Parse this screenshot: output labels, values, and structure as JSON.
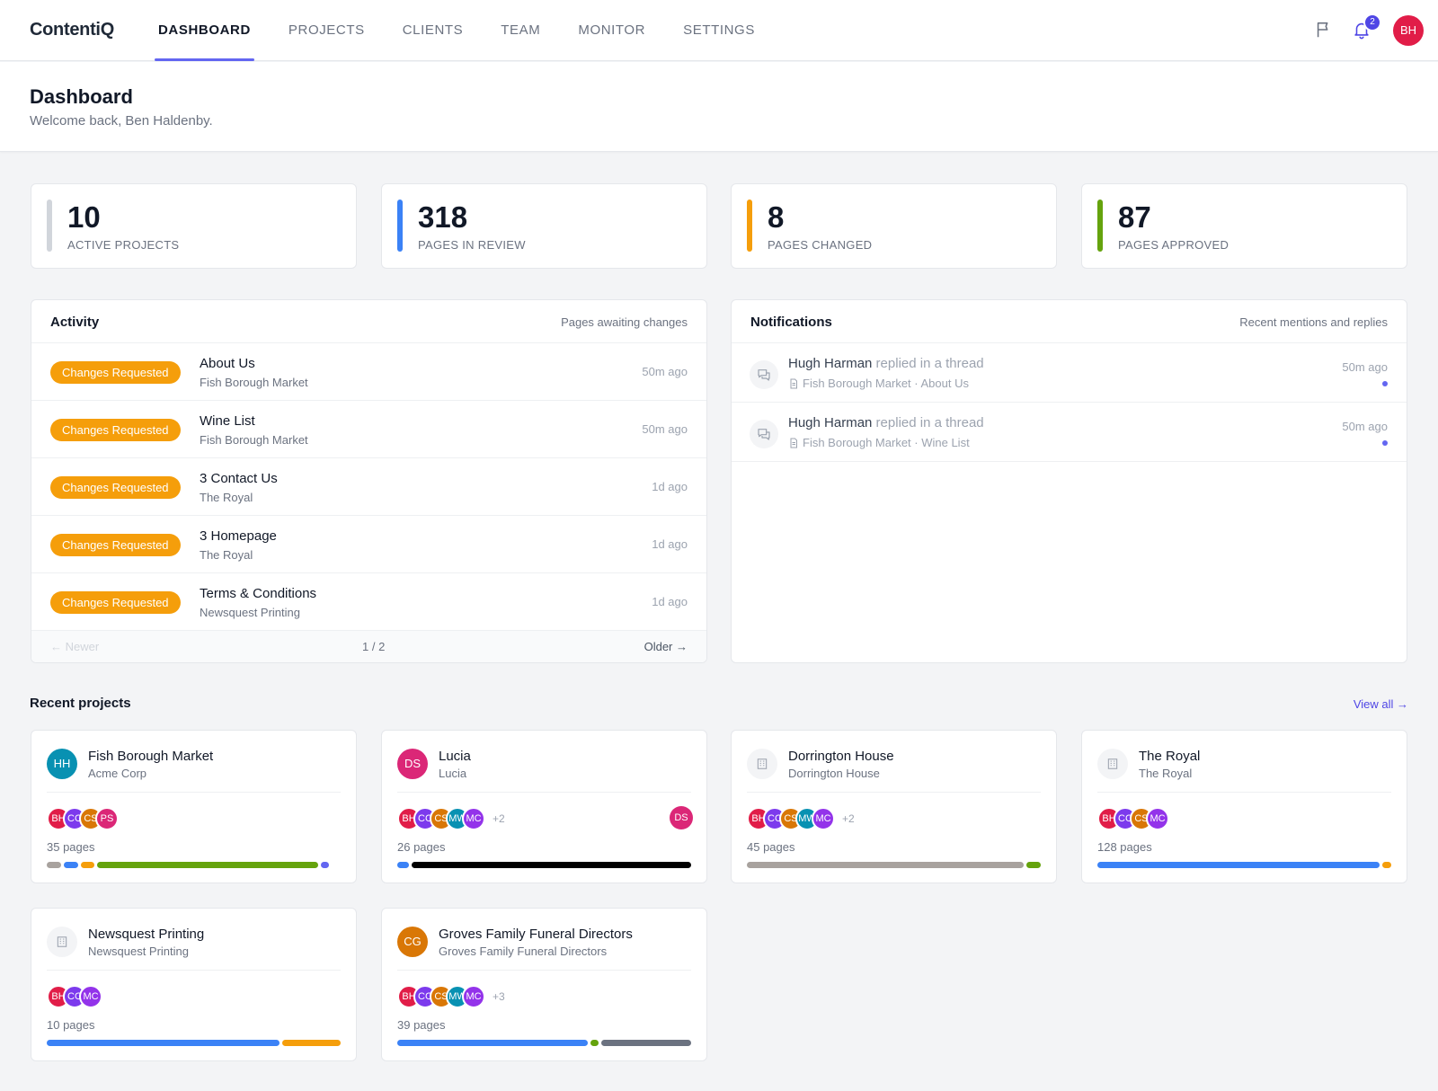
{
  "app": {
    "logo": "ContentiQ"
  },
  "nav": {
    "tabs": [
      {
        "label": "DASHBOARD",
        "active": true
      },
      {
        "label": "PROJECTS"
      },
      {
        "label": "CLIENTS"
      },
      {
        "label": "TEAM"
      },
      {
        "label": "MONITOR"
      },
      {
        "label": "SETTINGS"
      }
    ],
    "notifications_count": "2",
    "user_initials": "BH",
    "icons": [
      "flag-icon",
      "bell-icon"
    ]
  },
  "header": {
    "title": "Dashboard",
    "subtitle": "Welcome back, Ben Haldenby."
  },
  "stats": [
    {
      "value": "10",
      "label": "ACTIVE PROJECTS",
      "color": "#d1d5db"
    },
    {
      "value": "318",
      "label": "PAGES IN REVIEW",
      "color": "#3b82f6"
    },
    {
      "value": "8",
      "label": "PAGES CHANGED",
      "color": "#f59e0b"
    },
    {
      "value": "87",
      "label": "PAGES APPROVED",
      "color": "#65a30d"
    }
  ],
  "activity": {
    "title": "Activity",
    "hint": "Pages awaiting changes",
    "rows": [
      {
        "status": "Changes Requested",
        "page": "About Us",
        "project": "Fish Borough Market",
        "time": "50m ago"
      },
      {
        "status": "Changes Requested",
        "page": "Wine List",
        "project": "Fish Borough Market",
        "time": "50m ago"
      },
      {
        "status": "Changes Requested",
        "page": "3 Contact Us",
        "project": "The Royal",
        "time": "1d ago"
      },
      {
        "status": "Changes Requested",
        "page": "3 Homepage",
        "project": "The Royal",
        "time": "1d ago"
      },
      {
        "status": "Changes Requested",
        "page": "Terms & Conditions",
        "project": "Newsquest Printing",
        "time": "1d ago"
      }
    ],
    "pager": {
      "newer": "← Newer",
      "page": "1 / 2",
      "older": "Older →"
    }
  },
  "notifications": {
    "title": "Notifications",
    "hint": "Recent mentions and replies",
    "rows": [
      {
        "author": "Hugh Harman",
        "action": " replied in a thread",
        "context": "Fish Borough Market · About Us",
        "time": "50m ago",
        "unread": true
      },
      {
        "author": "Hugh Harman",
        "action": " replied in a thread",
        "context": "Fish Borough Market · Wine List",
        "time": "50m ago",
        "unread": true
      }
    ]
  },
  "recent_projects": {
    "title": "Recent projects",
    "view_all": "View all →",
    "projects": [
      {
        "name": "Fish Borough Market",
        "client": "Acme Corp",
        "avatar": "HH",
        "avatar_color": "#0891b2",
        "members": [
          [
            "BH",
            "#e11d48"
          ],
          [
            "CC",
            "#7c3aed"
          ],
          [
            "CS",
            "#d97706"
          ],
          [
            "PS",
            "#db2777"
          ]
        ],
        "extra": "",
        "owner": "",
        "pages": "35 pages",
        "progress": [
          [
            "#a8a29e",
            0.05
          ],
          [
            "#3b82f6",
            0.05
          ],
          [
            "#f59e0b",
            0.05
          ],
          [
            "#65a30d",
            0.78
          ],
          [
            "#6366f1",
            0.03
          ]
        ]
      },
      {
        "name": "Lucia",
        "client": "Lucia",
        "avatar": "DS",
        "avatar_color": "#db2777",
        "members": [
          [
            "BH",
            "#e11d48"
          ],
          [
            "CC",
            "#7c3aed"
          ],
          [
            "CS",
            "#d97706"
          ],
          [
            "MW",
            "#0891b2"
          ],
          [
            "MC",
            "#9333ea"
          ]
        ],
        "extra": "+2",
        "owner": "DS",
        "pages": "26 pages",
        "progress": [
          [
            "#3b82f6",
            0.04
          ],
          [
            "#000000",
            0.96
          ]
        ]
      },
      {
        "name": "Dorrington House",
        "client": "Dorrington House",
        "avatar": "",
        "avatar_color": "",
        "members": [
          [
            "BH",
            "#e11d48"
          ],
          [
            "CC",
            "#7c3aed"
          ],
          [
            "CS",
            "#d97706"
          ],
          [
            "MW",
            "#0891b2"
          ],
          [
            "MC",
            "#9333ea"
          ]
        ],
        "extra": "+2",
        "owner": "",
        "pages": "45 pages",
        "progress": [
          [
            "#a8a29e",
            0.95
          ],
          [
            "#65a30d",
            0.05
          ]
        ]
      },
      {
        "name": "The Royal",
        "client": "The Royal",
        "avatar": "",
        "avatar_color": "",
        "members": [
          [
            "BH",
            "#e11d48"
          ],
          [
            "CC",
            "#7c3aed"
          ],
          [
            "CS",
            "#d97706"
          ],
          [
            "MC",
            "#9333ea"
          ]
        ],
        "extra": "",
        "owner": "",
        "pages": "128 pages",
        "progress": [
          [
            "#3b82f6",
            0.97
          ],
          [
            "#f59e0b",
            0.03
          ]
        ]
      },
      {
        "name": "Newsquest Printing",
        "client": "Newsquest Printing",
        "avatar": "",
        "avatar_color": "",
        "members": [
          [
            "BH",
            "#e11d48"
          ],
          [
            "CC",
            "#7c3aed"
          ],
          [
            "MC",
            "#9333ea"
          ]
        ],
        "extra": "",
        "owner": "",
        "pages": "10 pages",
        "progress": [
          [
            "#3b82f6",
            0.8
          ],
          [
            "#f59e0b",
            0.2
          ]
        ]
      },
      {
        "name": "Groves Family Funeral Directors",
        "client": "Groves Family Funeral Directors",
        "avatar": "CG",
        "avatar_color": "#d97706",
        "members": [
          [
            "BH",
            "#e11d48"
          ],
          [
            "CC",
            "#7c3aed"
          ],
          [
            "CS",
            "#d97706"
          ],
          [
            "MW",
            "#0891b2"
          ],
          [
            "MC",
            "#9333ea"
          ]
        ],
        "extra": "+3",
        "owner": "",
        "pages": "39 pages",
        "progress": [
          [
            "#3b82f6",
            0.66
          ],
          [
            "#65a30d",
            0.03
          ],
          [
            "#6b7280",
            0.31
          ]
        ]
      }
    ]
  }
}
